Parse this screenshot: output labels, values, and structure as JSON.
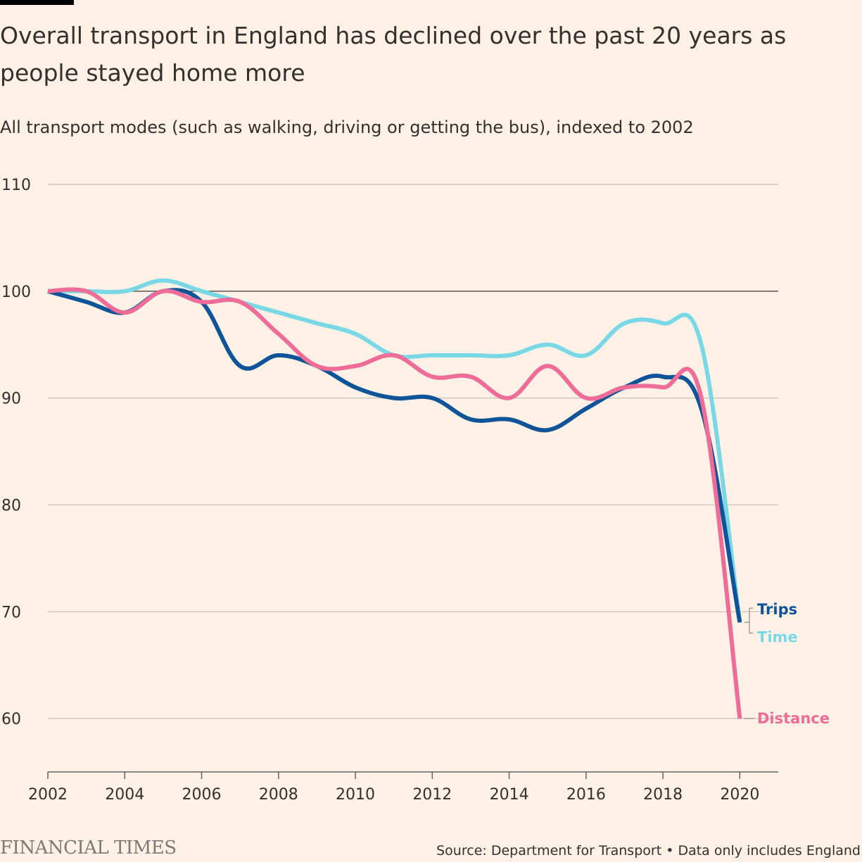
{
  "header": {
    "title": "Overall transport in England has declined over the past 20 years as people stayed home more",
    "subtitle": "All transport modes (such as walking, driving or getting the bus), indexed to 2002"
  },
  "footer": {
    "brand": "FINANCIAL TIMES",
    "source": "Source: Department for Transport • Data only includes England"
  },
  "colors": {
    "background": "#fff1e5",
    "trips": "#0f5499",
    "time": "#7ad8e6",
    "distance": "#ef6c98",
    "grid": "#cec6bf",
    "baseline": "#66605c"
  },
  "chart_data": {
    "type": "line",
    "x": [
      2002,
      2003,
      2004,
      2005,
      2006,
      2007,
      2008,
      2009,
      2010,
      2011,
      2012,
      2013,
      2014,
      2015,
      2016,
      2017,
      2018,
      2019,
      2020
    ],
    "series": [
      {
        "name": "Trips",
        "color": "#0f5499",
        "values": [
          100,
          99,
          98,
          100,
          99,
          93,
          94,
          93,
          91,
          90,
          90,
          88,
          88,
          87,
          89,
          91,
          92,
          89,
          69
        ]
      },
      {
        "name": "Time",
        "color": "#7ad8e6",
        "values": [
          100,
          100,
          100,
          101,
          100,
          99,
          98,
          97,
          96,
          94,
          94,
          94,
          94,
          95,
          94,
          97,
          97,
          95,
          69
        ]
      },
      {
        "name": "Distance",
        "color": "#ef6c98",
        "values": [
          100,
          100,
          98,
          100,
          99,
          99,
          96,
          93,
          93,
          94,
          92,
          92,
          90,
          93,
          90,
          91,
          91,
          90,
          60
        ]
      }
    ],
    "xlim": [
      2002,
      2021
    ],
    "ylim": [
      55,
      110
    ],
    "yticks": [
      60,
      70,
      80,
      90,
      100,
      110
    ],
    "xticks": [
      2002,
      2004,
      2006,
      2008,
      2010,
      2012,
      2014,
      2016,
      2018,
      2020
    ],
    "baseline": 100,
    "grid": true,
    "legend": "direct labels at line ends"
  }
}
